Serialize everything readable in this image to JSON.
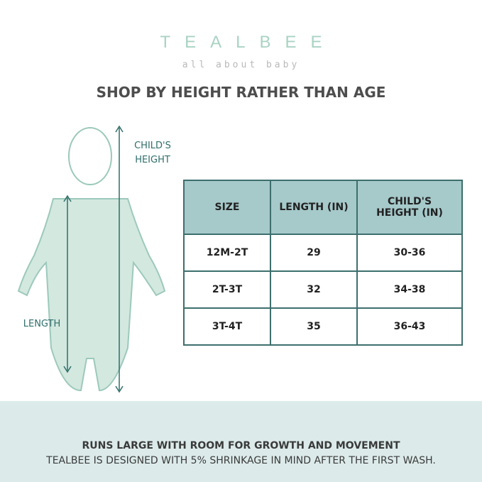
{
  "brand": {
    "name": "TEALBEE",
    "tagline": "all about baby"
  },
  "title": "SHOP BY HEIGHT RATHER THAN AGE",
  "figure": {
    "height_label_line1": "CHILD'S",
    "height_label_line2": "HEIGHT",
    "length_label": "LENGTH"
  },
  "table": {
    "headers": [
      "SIZE",
      "LENGTH (IN)",
      "CHILD'S HEIGHT (IN)"
    ],
    "rows": [
      [
        "12M-2T",
        "29",
        "30-36"
      ],
      [
        "2T-3T",
        "32",
        "34-38"
      ],
      [
        "3T-4T",
        "35",
        "36-43"
      ]
    ]
  },
  "footer": {
    "line1": "RUNS LARGE WITH ROOM FOR GROWTH AND MOVEMENT",
    "line2": "TEALBEE IS DESIGNED WITH 5% SHRINKAGE IN MIND AFTER THE FIRST WASH."
  },
  "colors": {
    "accent": "#2f6f6a",
    "header_bg": "#a6c9ca",
    "band_bg": "#dcebea",
    "garment": "#cfe5dc"
  }
}
